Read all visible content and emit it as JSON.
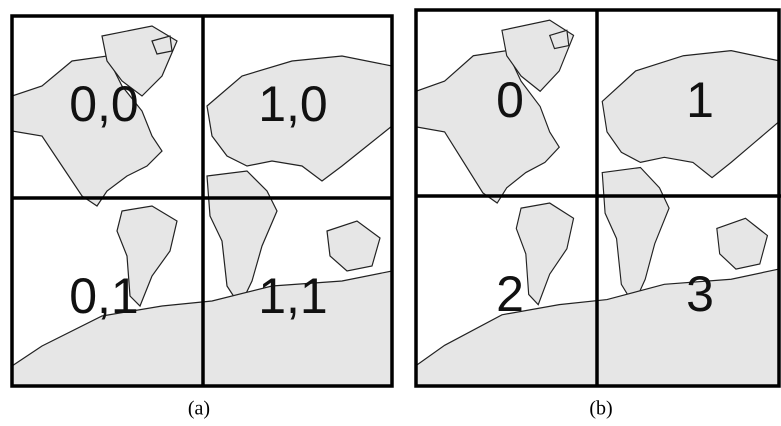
{
  "panels": [
    {
      "tiles": [
        {
          "label": "0,0"
        },
        {
          "label": "1,0"
        },
        {
          "label": "0,1"
        },
        {
          "label": "1,1"
        }
      ],
      "caption": "(a)"
    },
    {
      "tiles": [
        {
          "label": "0"
        },
        {
          "label": "1"
        },
        {
          "label": "2"
        },
        {
          "label": "3"
        }
      ],
      "caption": "(b)"
    }
  ]
}
